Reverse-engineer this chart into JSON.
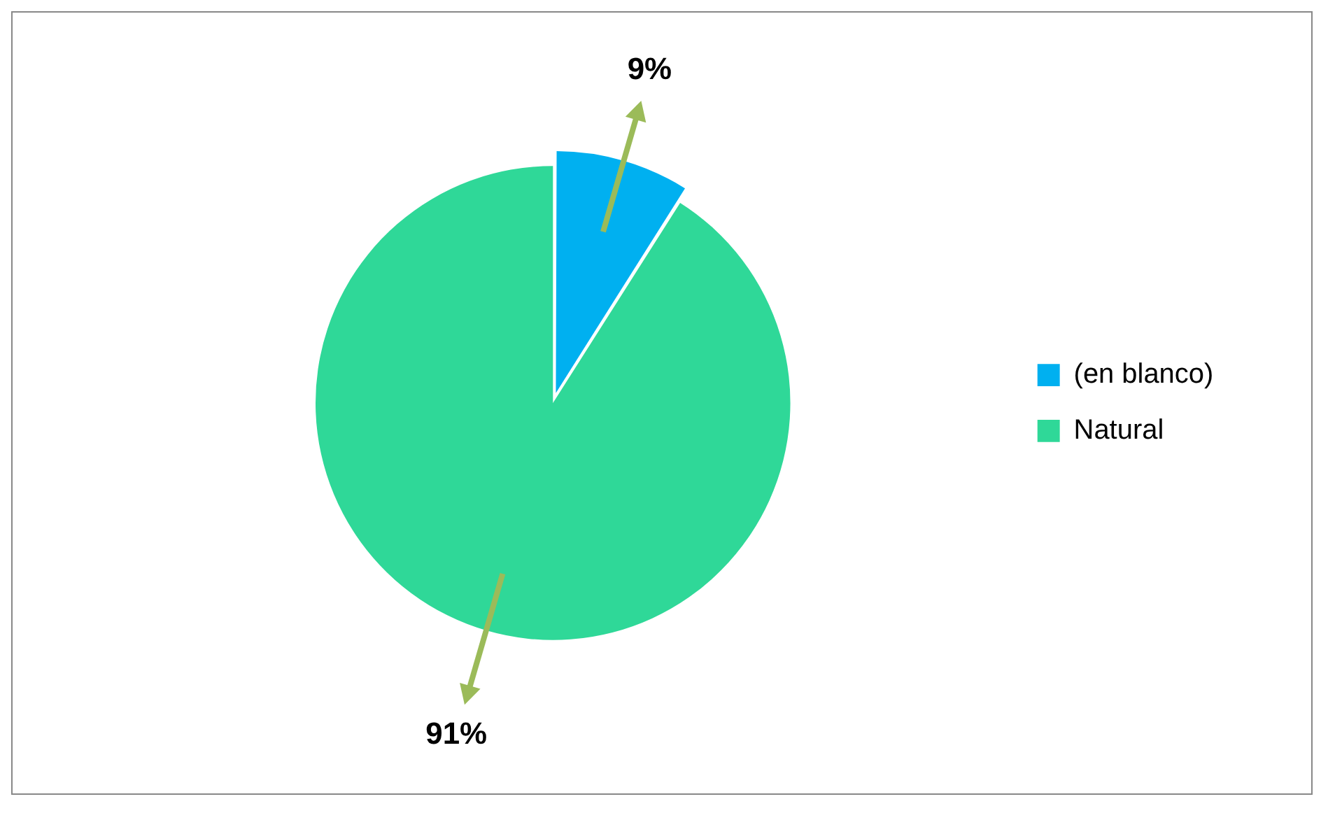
{
  "chart_data": {
    "type": "pie",
    "categories": [
      "(en blanco)",
      "Natural"
    ],
    "values": [
      9,
      91
    ],
    "colors": [
      "#00b0f0",
      "#2fd898"
    ],
    "value_labels": [
      "9%",
      "91%"
    ],
    "legend": "right"
  }
}
